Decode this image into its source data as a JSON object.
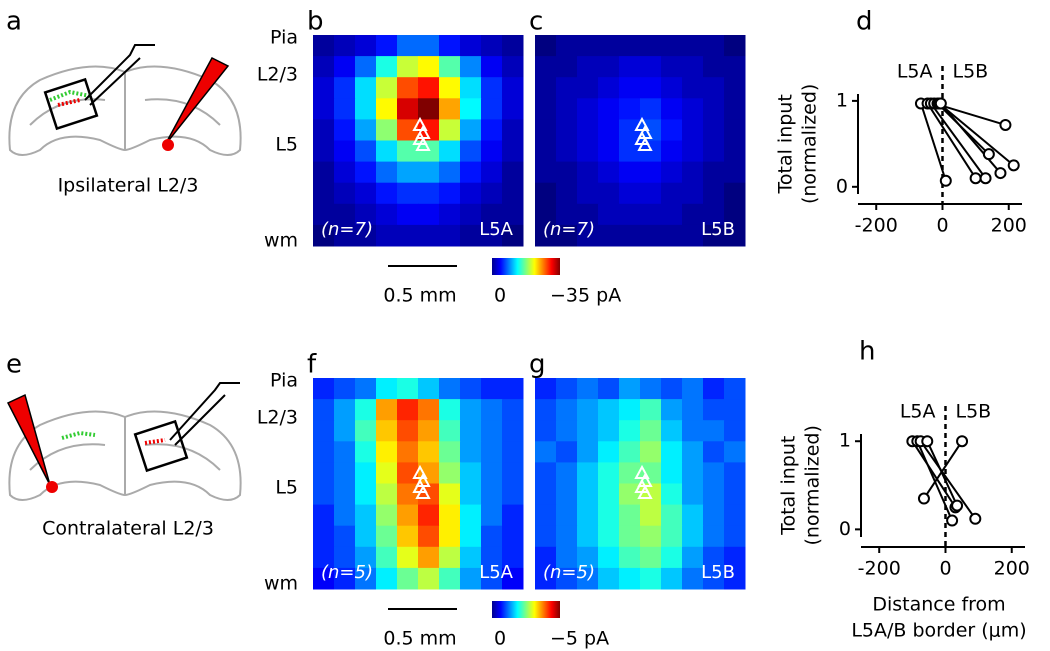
{
  "figure_rows": [
    {
      "schematic": {
        "label": "a",
        "caption": "Ipsilateral L2/3"
      },
      "layers": [
        "Pia",
        "L2/3",
        "L5",
        "wm"
      ],
      "scale_bar": "0.5 mm",
      "clim": [
        0,
        -35
      ],
      "cticks": [
        0,
        {
          "value": -35,
          "label": "−35 pA"
        }
      ]
    },
    {
      "schematic": {
        "label": "e",
        "caption": "Contralateral L2/3"
      },
      "layers": [
        "Pia",
        "L2/3",
        "L5",
        "wm"
      ],
      "scale_bar": "0.5 mm",
      "clim": [
        0,
        -5
      ],
      "cticks": [
        0,
        {
          "value": -5,
          "label": "−5 pA"
        }
      ]
    }
  ],
  "chart_data": [
    {
      "type": "heatmap",
      "label": "b",
      "n_label": "(n=7)",
      "cell_type": "L5A",
      "values": [
        [
          -1,
          -2,
          -3,
          -5,
          -8,
          -8,
          -5,
          -3,
          -2,
          -1
        ],
        [
          -2,
          -4,
          -8,
          -14,
          -20,
          -22,
          -16,
          -9,
          -4,
          -2
        ],
        [
          -3,
          -6,
          -12,
          -20,
          -28,
          -30,
          -22,
          -12,
          -6,
          -3
        ],
        [
          -3,
          -6,
          -12,
          -22,
          -32,
          -35,
          -25,
          -13,
          -6,
          -3
        ],
        [
          -2,
          -5,
          -10,
          -18,
          -28,
          -30,
          -20,
          -10,
          -5,
          -2
        ],
        [
          -2,
          -4,
          -7,
          -12,
          -16,
          -16,
          -12,
          -7,
          -4,
          -2
        ],
        [
          -1,
          -3,
          -5,
          -8,
          -10,
          -10,
          -8,
          -5,
          -3,
          -1
        ],
        [
          -1,
          -2,
          -3,
          -5,
          -6,
          -6,
          -5,
          -3,
          -2,
          -1
        ],
        [
          -1,
          -1,
          -2,
          -3,
          -4,
          -4,
          -3,
          -2,
          -1,
          -1
        ],
        [
          0,
          -1,
          -1,
          -2,
          -2,
          -2,
          -2,
          -1,
          -1,
          0
        ]
      ]
    },
    {
      "type": "heatmap",
      "label": "c",
      "n_label": "(n=7)",
      "cell_type": "L5B",
      "values": [
        [
          0,
          -1,
          -1,
          -1,
          -1,
          -1,
          -1,
          -1,
          -1,
          0
        ],
        [
          -1,
          -1,
          -2,
          -2,
          -3,
          -3,
          -2,
          -2,
          -1,
          -1
        ],
        [
          -1,
          -2,
          -2,
          -3,
          -4,
          -4,
          -3,
          -2,
          -2,
          -1
        ],
        [
          -1,
          -2,
          -3,
          -4,
          -5,
          -6,
          -4,
          -3,
          -2,
          -1
        ],
        [
          -1,
          -2,
          -3,
          -4,
          -6,
          -7,
          -5,
          -3,
          -2,
          -1
        ],
        [
          -1,
          -2,
          -3,
          -4,
          -6,
          -6,
          -4,
          -3,
          -2,
          -1
        ],
        [
          -1,
          -1,
          -2,
          -3,
          -4,
          -4,
          -3,
          -2,
          -1,
          -1
        ],
        [
          0,
          -1,
          -2,
          -2,
          -3,
          -3,
          -2,
          -2,
          -1,
          0
        ],
        [
          0,
          -1,
          -1,
          -2,
          -2,
          -2,
          -2,
          -1,
          -1,
          0
        ],
        [
          0,
          0,
          -1,
          -1,
          -1,
          -1,
          -1,
          -1,
          0,
          0
        ]
      ]
    },
    {
      "type": "paired",
      "label": "d",
      "ylabel": [
        "Total input",
        "(normalized)"
      ],
      "xlim": [
        -255,
        240
      ],
      "ylim": [
        -0.2,
        1.15
      ],
      "xticks": [
        -200,
        0,
        200
      ],
      "yticks": [
        0,
        1
      ],
      "reference_x": 0,
      "series": [
        {
          "name": "L5A",
          "x": [
            -65,
            -45,
            -35,
            -25,
            -15,
            -10,
            -5
          ],
          "values": [
            0.97,
            0.97,
            0.97,
            0.97,
            0.97,
            0.97,
            0.97
          ]
        },
        {
          "name": "L5B",
          "x": [
            10,
            100,
            130,
            190,
            140,
            215,
            175
          ],
          "values": [
            0.07,
            0.1,
            0.1,
            0.72,
            0.38,
            0.25,
            0.16
          ]
        }
      ]
    },
    {
      "type": "heatmap",
      "label": "f",
      "n_label": "(n=5)",
      "cell_type": "L5A",
      "values": [
        [
          -0.8,
          -1.0,
          -1.2,
          -1.8,
          -2.0,
          -1.6,
          -1.2,
          -1.0,
          -0.8,
          -0.8
        ],
        [
          -1.0,
          -1.4,
          -2.0,
          -3.6,
          -4.2,
          -3.8,
          -2.0,
          -1.4,
          -1.2,
          -1.0
        ],
        [
          -1.0,
          -1.4,
          -2.2,
          -3.4,
          -4.0,
          -3.6,
          -2.2,
          -1.4,
          -1.2,
          -1.0
        ],
        [
          -1.0,
          -1.2,
          -2.0,
          -3.2,
          -3.8,
          -3.4,
          -2.4,
          -1.4,
          -1.2,
          -1.0
        ],
        [
          -1.0,
          -1.2,
          -1.8,
          -3.0,
          -4.0,
          -3.6,
          -2.6,
          -1.6,
          -1.2,
          -1.0
        ],
        [
          -1.0,
          -1.2,
          -1.8,
          -2.8,
          -3.8,
          -4.0,
          -3.0,
          -1.6,
          -1.2,
          -1.0
        ],
        [
          -0.8,
          -1.2,
          -1.6,
          -2.6,
          -3.6,
          -4.2,
          -3.2,
          -1.8,
          -1.2,
          -0.8
        ],
        [
          -0.8,
          -1.0,
          -1.6,
          -2.4,
          -3.4,
          -4.0,
          -3.2,
          -1.8,
          -1.0,
          -0.8
        ],
        [
          -0.8,
          -1.0,
          -1.4,
          -2.2,
          -3.0,
          -3.6,
          -2.8,
          -1.6,
          -1.0,
          -0.8
        ],
        [
          -0.6,
          -0.8,
          -1.2,
          -1.8,
          -2.4,
          -2.8,
          -2.2,
          -1.4,
          -1.0,
          -0.6
        ]
      ]
    },
    {
      "type": "heatmap",
      "label": "g",
      "n_label": "(n=5)",
      "cell_type": "L5B",
      "values": [
        [
          -0.8,
          -1.0,
          -1.2,
          -1.0,
          -1.4,
          -1.2,
          -1.0,
          -1.2,
          -0.8,
          -1.0
        ],
        [
          -1.0,
          -1.2,
          -1.4,
          -1.6,
          -1.8,
          -2.2,
          -1.4,
          -1.2,
          -1.0,
          -1.0
        ],
        [
          -1.0,
          -1.2,
          -1.4,
          -1.6,
          -2.0,
          -2.4,
          -1.6,
          -1.2,
          -1.2,
          -1.0
        ],
        [
          -1.2,
          -1.0,
          -1.4,
          -1.8,
          -2.2,
          -2.6,
          -1.8,
          -1.4,
          -1.0,
          -1.2
        ],
        [
          -1.0,
          -1.2,
          -1.6,
          -2.0,
          -2.4,
          -2.4,
          -1.8,
          -1.4,
          -1.2,
          -1.0
        ],
        [
          -1.0,
          -1.2,
          -1.6,
          -2.0,
          -2.6,
          -2.8,
          -2.0,
          -1.4,
          -1.2,
          -1.0
        ],
        [
          -1.0,
          -1.2,
          -1.6,
          -2.0,
          -2.4,
          -2.8,
          -2.2,
          -1.6,
          -1.2,
          -1.0
        ],
        [
          -1.0,
          -1.2,
          -1.6,
          -2.0,
          -2.4,
          -2.6,
          -2.2,
          -1.6,
          -1.2,
          -1.0
        ],
        [
          -0.8,
          -1.2,
          -1.4,
          -1.8,
          -2.2,
          -2.4,
          -2.0,
          -1.4,
          -1.0,
          -0.8
        ],
        [
          -0.8,
          -1.0,
          -1.2,
          -1.6,
          -1.8,
          -2.0,
          -1.6,
          -1.2,
          -1.0,
          -0.8
        ]
      ]
    },
    {
      "type": "paired",
      "label": "h",
      "ylabel": [
        "Total input",
        "(normalized)"
      ],
      "xlabel": [
        "Distance from",
        "L5A/B border (μm)"
      ],
      "xlim": [
        -255,
        240
      ],
      "ylim": [
        -0.2,
        1.15
      ],
      "xticks": [
        -200,
        0,
        200
      ],
      "yticks": [
        0,
        1
      ],
      "reference_x": 0,
      "series": [
        {
          "name": "L5A",
          "x": [
            -100,
            -85,
            -75,
            -55,
            -65
          ],
          "values": [
            1,
            1,
            1,
            1,
            0.35
          ]
        },
        {
          "name": "L5B",
          "x": [
            30,
            20,
            90,
            35,
            50
          ],
          "values": [
            0.25,
            0.1,
            0.12,
            0.27,
            1
          ]
        }
      ]
    }
  ]
}
